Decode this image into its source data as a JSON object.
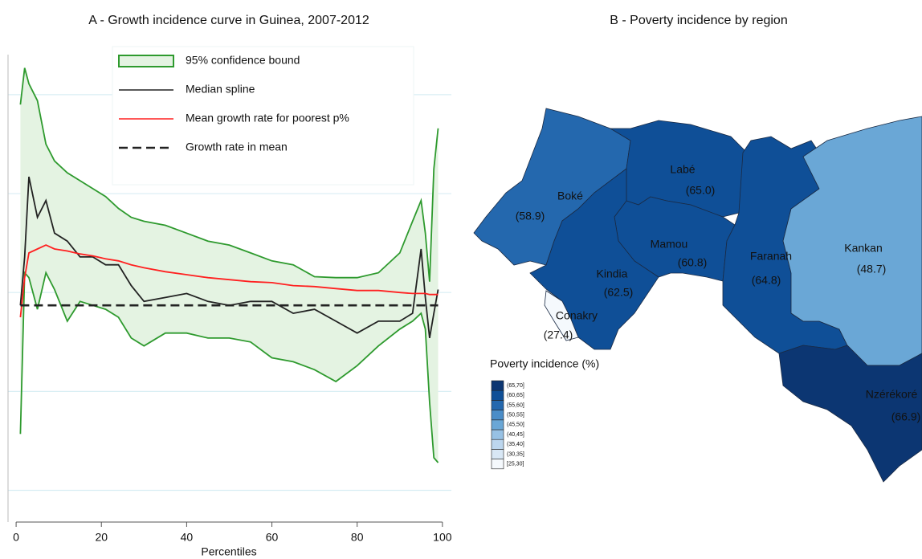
{
  "chart_data": [
    {
      "type": "line",
      "title": "A - Growth incidence curve in Guinea, 2007-2012",
      "xlabel": "Percentiles",
      "x": [
        1,
        2,
        3,
        5,
        7,
        9,
        12,
        15,
        18,
        21,
        24,
        27,
        30,
        35,
        40,
        45,
        50,
        55,
        60,
        65,
        70,
        75,
        80,
        85,
        90,
        93,
        95,
        96,
        97,
        98,
        99
      ],
      "xlim": [
        -1.9,
        102.1
      ],
      "xticks": [
        0,
        20,
        40,
        60,
        80,
        100
      ],
      "ylim": [
        -2.8,
        44.7
      ],
      "yticks": [
        0,
        10,
        20,
        30,
        40
      ],
      "grid": true,
      "legend": "top-right",
      "series": [
        {
          "name": "95% confidence bound",
          "style": "band",
          "color": "#2e9a2e",
          "fill": "#e4f3e2",
          "upper": [
            39.0,
            42.7,
            41.1,
            39.4,
            35.0,
            33.3,
            32.1,
            31.3,
            30.5,
            29.7,
            28.5,
            27.6,
            27.2,
            26.8,
            26.0,
            25.2,
            24.8,
            24.0,
            23.2,
            22.8,
            21.6,
            21.5,
            21.5,
            22.0,
            24.0,
            27.2,
            29.3,
            26.0,
            21.1,
            32.5,
            36.6
          ],
          "lower": [
            5.7,
            22.0,
            21.5,
            18.3,
            22.0,
            20.3,
            17.1,
            19.1,
            18.7,
            18.3,
            17.5,
            15.4,
            14.6,
            15.9,
            15.9,
            15.4,
            15.4,
            15.0,
            13.4,
            13.0,
            12.2,
            11.0,
            12.6,
            14.6,
            16.3,
            17.1,
            17.9,
            16.3,
            8.9,
            3.3,
            2.8
          ]
        },
        {
          "name": "Median spline",
          "style": "solid",
          "color": "#222222",
          "values": [
            18.7,
            23.6,
            31.7,
            27.6,
            29.3,
            26.0,
            25.2,
            23.6,
            23.6,
            22.8,
            22.8,
            20.7,
            19.1,
            19.5,
            19.9,
            19.1,
            18.7,
            19.1,
            19.1,
            17.9,
            18.3,
            17.1,
            15.9,
            17.1,
            17.1,
            17.9,
            24.4,
            19.5,
            15.4,
            17.9,
            20.3
          ]
        },
        {
          "name": "Mean growth rate for poorest p%",
          "style": "solid",
          "color": "#ff2020",
          "values": [
            17.5,
            21.5,
            24.0,
            24.4,
            24.8,
            24.4,
            24.2,
            23.9,
            23.7,
            23.4,
            23.2,
            22.8,
            22.5,
            22.1,
            21.8,
            21.5,
            21.3,
            21.1,
            21.0,
            20.7,
            20.6,
            20.4,
            20.2,
            20.2,
            20.0,
            19.9,
            19.9,
            19.9,
            19.8,
            19.8,
            19.8
          ]
        },
        {
          "name": "Growth rate in mean",
          "style": "dashed",
          "color": "#222222",
          "values": [
            18.7,
            18.7,
            18.7,
            18.7,
            18.7,
            18.7,
            18.7,
            18.7,
            18.7,
            18.7,
            18.7,
            18.7,
            18.7,
            18.7,
            18.7,
            18.7,
            18.7,
            18.7,
            18.7,
            18.7,
            18.7,
            18.7,
            18.7,
            18.7,
            18.7,
            18.7,
            18.7,
            18.7,
            18.7,
            18.7,
            18.7
          ]
        }
      ]
    },
    {
      "type": "map",
      "title": "B - Poverty incidence by region",
      "legend_title": "Poverty incidence (%)",
      "bins": [
        25,
        30,
        35,
        40,
        45,
        50,
        55,
        60,
        65,
        70
      ],
      "bin_labels": [
        "[25,30]",
        "(30,35]",
        "(35,40]",
        "(40,45]",
        "(45,50]",
        "(50,55]",
        "(55,60]",
        "(60,65]",
        "(65,70]"
      ],
      "bin_colors": [
        "#f5f9fd",
        "#d8e7f5",
        "#bcd6ee",
        "#97c1e4",
        "#6aa7d6",
        "#4a8dc8",
        "#2468ae",
        "#0f4f97",
        "#0c3672"
      ],
      "regions": [
        {
          "name": "Boké",
          "value": 58.9,
          "value_label": "(58.9)"
        },
        {
          "name": "Labé",
          "value": 65.0,
          "value_label": "(65.0)"
        },
        {
          "name": "Mamou",
          "value": 60.8,
          "value_label": "(60.8)"
        },
        {
          "name": "Kindia",
          "value": 62.5,
          "value_label": "(62.5)"
        },
        {
          "name": "Conakry",
          "value": 27.4,
          "value_label": "(27.4)"
        },
        {
          "name": "Faranah",
          "value": 64.8,
          "value_label": "(64.8)"
        },
        {
          "name": "Kankan",
          "value": 48.7,
          "value_label": "(48.7)"
        },
        {
          "name": "Nzérékoré",
          "value": 66.9,
          "value_label": "(66.9)"
        }
      ]
    }
  ]
}
